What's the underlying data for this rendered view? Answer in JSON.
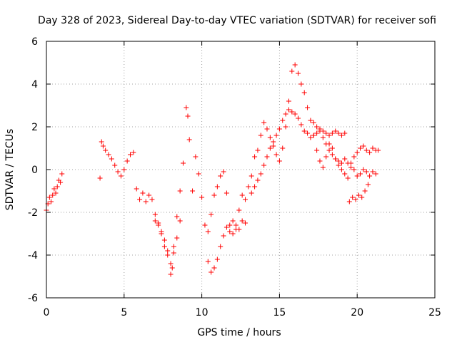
{
  "chart_data": {
    "type": "scatter",
    "title": "Day 328 of 2023, Sidereal Day-to-day VTEC variation (SDTVAR) for receiver sofi",
    "xlabel": "GPS time / hours",
    "ylabel": "SDTVAR / TECUs",
    "xlim": [
      0,
      25
    ],
    "ylim": [
      -6,
      6
    ],
    "xticks": [
      0,
      5,
      10,
      15,
      20,
      25
    ],
    "yticks": [
      -6,
      -4,
      -2,
      0,
      2,
      4,
      6
    ],
    "grid": true,
    "marker": "+",
    "color": "#ff0000",
    "series": [
      {
        "x": [
          0.0,
          0.1,
          0.2,
          0.3,
          0.4,
          0.5,
          0.6,
          0.7,
          0.8,
          0.9,
          1.0,
          3.45,
          3.55,
          3.65,
          3.8,
          4.0,
          4.2,
          4.4,
          4.6,
          4.8,
          5.0,
          5.2,
          5.4,
          5.6,
          5.8,
          6.0,
          6.2,
          6.4,
          6.6,
          6.8,
          7.0,
          7.2,
          7.4,
          7.6,
          7.8,
          8.0,
          8.1,
          8.2,
          8.4,
          8.6,
          8.8,
          9.0,
          9.1,
          9.2,
          9.4,
          9.6,
          9.8,
          10.0,
          10.2,
          10.4,
          10.6,
          10.8,
          11.0,
          11.2,
          11.4,
          11.6,
          11.8,
          12.0,
          12.2,
          12.4,
          12.6,
          12.8,
          13.0,
          13.2,
          13.4,
          13.6,
          13.8,
          14.0,
          14.2,
          14.4,
          14.6,
          14.8,
          15.0,
          15.2,
          15.4,
          15.6,
          15.8,
          16.0,
          16.2,
          16.4,
          16.6,
          16.8,
          17.0,
          17.2,
          17.4,
          17.6,
          17.8,
          18.0,
          18.2,
          18.4,
          18.6,
          18.8,
          19.0,
          19.2,
          19.4,
          19.6,
          19.8,
          20.0,
          20.2,
          20.4,
          20.6,
          20.8,
          21.0,
          21.2,
          21.35,
          13.2,
          13.4,
          13.6,
          13.8,
          14.0,
          14.2,
          14.4,
          14.6,
          14.8,
          15.0,
          15.2,
          15.4,
          15.6,
          15.8,
          16.0,
          16.2,
          16.4,
          16.6,
          16.8,
          17.0,
          17.2,
          17.4,
          17.6,
          17.8,
          18.0,
          18.2,
          18.4,
          18.6,
          18.8,
          19.0,
          19.2,
          19.4,
          19.6,
          19.8,
          20.0,
          20.2,
          20.4,
          20.6,
          20.8,
          21.0,
          21.2,
          10.4,
          10.6,
          10.8,
          11.0,
          11.2,
          11.4,
          11.6,
          11.8,
          12.0,
          12.2,
          12.4,
          12.6,
          12.8,
          7.0,
          7.2,
          7.4,
          7.6,
          7.8,
          8.0,
          8.2,
          8.4,
          8.6,
          19.5,
          19.7,
          19.9,
          20.1,
          20.3,
          20.5,
          20.7,
          17.2,
          17.4,
          17.6,
          17.8,
          18.0,
          18.2,
          18.4,
          18.6,
          18.8,
          19.0,
          19.2
        ],
        "y": [
          -1.9,
          -1.6,
          -1.3,
          -1.5,
          -1.2,
          -0.9,
          -1.1,
          -0.8,
          -0.5,
          -0.6,
          -0.2,
          -0.4,
          1.3,
          1.1,
          0.9,
          0.7,
          0.5,
          0.2,
          -0.1,
          -0.3,
          0.0,
          0.4,
          0.7,
          0.8,
          -0.9,
          -1.4,
          -1.1,
          -1.5,
          -1.2,
          -1.4,
          -2.4,
          -2.6,
          -2.9,
          -3.3,
          -3.8,
          -4.9,
          -4.6,
          -3.6,
          -2.2,
          -1.0,
          0.3,
          2.9,
          2.5,
          1.4,
          -1.0,
          0.6,
          -0.2,
          -1.3,
          -2.6,
          -2.9,
          -2.1,
          -1.2,
          -0.8,
          -0.3,
          -0.1,
          -1.1,
          -2.6,
          -2.4,
          -2.8,
          -1.9,
          -1.2,
          -1.4,
          -0.8,
          -0.3,
          0.6,
          0.9,
          1.6,
          2.2,
          1.9,
          1.5,
          1.1,
          0.7,
          0.4,
          1.0,
          2.0,
          3.2,
          4.6,
          4.9,
          4.5,
          4.0,
          3.6,
          2.9,
          2.3,
          1.6,
          0.9,
          0.4,
          0.1,
          0.6,
          1.2,
          1.0,
          0.5,
          0.2,
          0.0,
          -0.2,
          -0.4,
          0.3,
          0.6,
          0.8,
          1.0,
          1.1,
          0.9,
          0.8,
          1.0,
          0.9,
          0.9,
          -1.1,
          -0.8,
          -0.5,
          -0.2,
          0.2,
          0.6,
          1.0,
          1.3,
          1.6,
          1.9,
          2.3,
          2.6,
          2.8,
          2.7,
          2.6,
          2.4,
          2.1,
          1.8,
          1.7,
          1.5,
          1.6,
          1.7,
          1.8,
          1.5,
          1.2,
          0.9,
          0.7,
          0.5,
          0.4,
          0.3,
          0.5,
          0.3,
          0.1,
          0.0,
          -0.3,
          -0.2,
          0.0,
          -0.1,
          -0.3,
          -0.1,
          -0.2,
          -4.3,
          -4.8,
          -4.6,
          -4.2,
          -3.6,
          -3.1,
          -2.7,
          -2.9,
          -3.0,
          -2.6,
          -2.8,
          -2.4,
          -2.5,
          -2.1,
          -2.5,
          -3.0,
          -3.6,
          -4.0,
          -4.4,
          -3.9,
          -3.2,
          -2.4,
          -1.5,
          -1.3,
          -1.4,
          -1.2,
          -1.3,
          -1.0,
          -0.7,
          2.2,
          2.0,
          1.9,
          1.8,
          1.7,
          1.6,
          1.7,
          1.8,
          1.7,
          1.6,
          1.7
        ]
      }
    ]
  }
}
